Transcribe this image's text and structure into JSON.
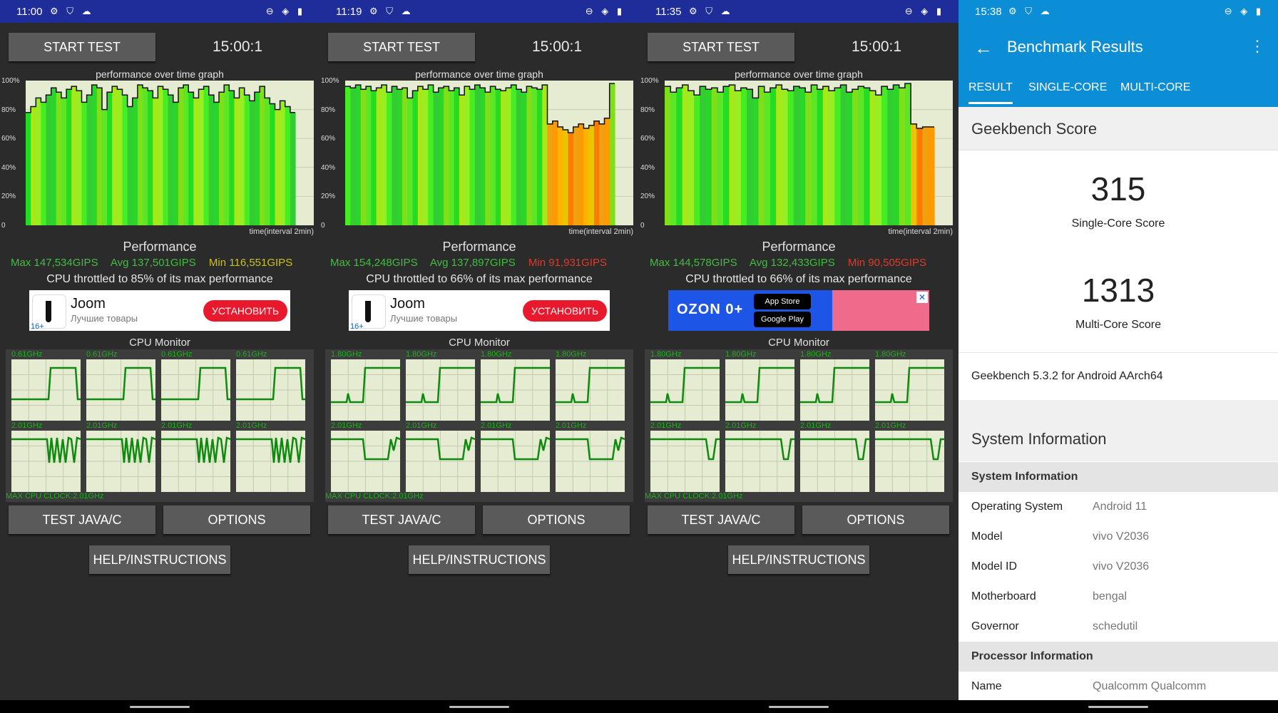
{
  "panels": [
    {
      "time": "11:00",
      "start_test": "START TEST",
      "timer": "15:00:1",
      "graph_title": "performance over time graph",
      "y_ticks": [
        "100%",
        "80%",
        "60%",
        "40%",
        "20%",
        "0"
      ],
      "x_label": "time(interval 2min)",
      "perf_heading": "Performance",
      "max": "Max 147,534GIPS",
      "avg": "Avg 137,501GIPS",
      "min": "Min 116,551GIPS",
      "min_color": "#c8c21a",
      "throttle": "CPU throttled to 85% of its max performance",
      "ad": {
        "type": "joom",
        "name": "Joom",
        "sub": "Лучшие товары",
        "button": "УСТАНОВИТЬ",
        "age": "16+"
      },
      "cpu_heading": "CPU Monitor",
      "freq_top": "0.61GHz",
      "freq_bottom": "2.01GHz",
      "max_clock": "MAX CPU CLOCK:2.01GHz",
      "test_java": "TEST JAVA/C",
      "options": "OPTIONS",
      "help": "HELP/INSTRUCTIONS",
      "perf_profile": [
        78,
        82,
        88,
        85,
        90,
        95,
        92,
        88,
        94,
        96,
        93,
        85,
        90,
        97,
        95,
        80,
        92,
        96,
        94,
        90,
        82,
        88,
        97,
        95,
        93,
        88,
        96,
        94,
        90,
        85,
        95,
        97,
        92,
        88,
        94,
        96,
        90,
        85,
        92,
        97,
        93,
        88,
        95,
        90,
        86,
        92,
        96,
        88,
        84,
        80,
        86,
        82,
        78
      ]
    },
    {
      "time": "11:19",
      "start_test": "START TEST",
      "timer": "15:00:1",
      "graph_title": "performance over time graph",
      "y_ticks": [
        "100%",
        "80%",
        "60%",
        "40%",
        "20%",
        "0"
      ],
      "x_label": "time(interval 2min)",
      "perf_heading": "Performance",
      "max": "Max 154,248GIPS",
      "avg": "Avg 137,897GIPS",
      "min": "Min 91,931GIPS",
      "min_color": "#e03a2a",
      "throttle": "CPU throttled to 66% of its max performance",
      "ad": {
        "type": "joom",
        "name": "Joom",
        "sub": "Лучшие товары",
        "button": "УСТАНОВИТЬ",
        "age": "16+"
      },
      "cpu_heading": "CPU Monitor",
      "freq_top": "1.80GHz",
      "freq_bottom": "2.01GHz",
      "max_clock": "MAX CPU CLOCK:2.01GHz",
      "test_java": "TEST JAVA/C",
      "options": "OPTIONS",
      "help": "HELP/INSTRUCTIONS",
      "perf_profile": [
        96,
        95,
        97,
        94,
        96,
        93,
        95,
        97,
        92,
        96,
        94,
        95,
        88,
        93,
        96,
        94,
        97,
        92,
        95,
        96,
        93,
        95,
        90,
        96,
        94,
        97,
        95,
        92,
        96,
        94,
        93,
        95,
        97,
        94,
        92,
        96,
        95,
        94,
        97,
        70,
        72,
        68,
        66,
        64,
        68,
        70,
        67,
        69,
        72,
        70,
        74,
        98
      ]
    },
    {
      "time": "11:35",
      "start_test": "START TEST",
      "timer": "15:00:1",
      "graph_title": "performance over time graph",
      "y_ticks": [
        "100%",
        "80%",
        "60%",
        "40%",
        "20%",
        "0"
      ],
      "x_label": "time(interval 2min)",
      "perf_heading": "Performance",
      "max": "Max 144,578GIPS",
      "avg": "Avg 132,433GIPS",
      "min": "Min 90,505GIPS",
      "min_color": "#e03a2a",
      "throttle": "CPU throttled to 66% of its max performance",
      "ad": {
        "type": "ozon",
        "name": "OZON 0+",
        "app_store": "App Store",
        "google_play": "Google Play"
      },
      "cpu_heading": "CPU Monitor",
      "freq_top": "1.80GHz",
      "freq_bottom": "2.01GHz",
      "max_clock": "MAX CPU CLOCK:2.01GHz",
      "test_java": "TEST JAVA/C",
      "options": "OPTIONS",
      "help": "HELP/INSTRUCTIONS",
      "perf_profile": [
        96,
        92,
        95,
        97,
        93,
        90,
        96,
        94,
        95,
        92,
        96,
        97,
        93,
        95,
        94,
        88,
        96,
        92,
        95,
        97,
        94,
        93,
        96,
        95,
        92,
        97,
        94,
        96,
        93,
        95,
        97,
        92,
        94,
        96,
        95,
        93,
        90,
        96,
        94,
        97,
        95,
        98,
        70,
        67,
        68,
        68
      ]
    }
  ],
  "geekbench": {
    "time": "15:38",
    "title": "Benchmark Results",
    "tabs": [
      "RESULT",
      "SINGLE-CORE",
      "MULTI-CORE"
    ],
    "section_score": "Geekbench Score",
    "single_score": "315",
    "single_label": "Single-Core Score",
    "multi_score": "1313",
    "multi_label": "Multi-Core Score",
    "version": "Geekbench 5.3.2 for Android AArch64",
    "section_sys": "System Information",
    "group_sys": "System Information",
    "rows": [
      {
        "k": "Operating System",
        "v": "Android 11"
      },
      {
        "k": "Model",
        "v": "vivo V2036"
      },
      {
        "k": "Model ID",
        "v": "vivo V2036"
      },
      {
        "k": "Motherboard",
        "v": "bengal"
      },
      {
        "k": "Governor",
        "v": "schedutil"
      }
    ],
    "group_proc": "Processor Information",
    "proc_row": {
      "k": "Name",
      "v": "Qualcomm Qualcomm"
    }
  },
  "colors": {
    "green": "#19b319",
    "max_avg": "#3fbf3f",
    "accent": "#0b8ed6"
  }
}
